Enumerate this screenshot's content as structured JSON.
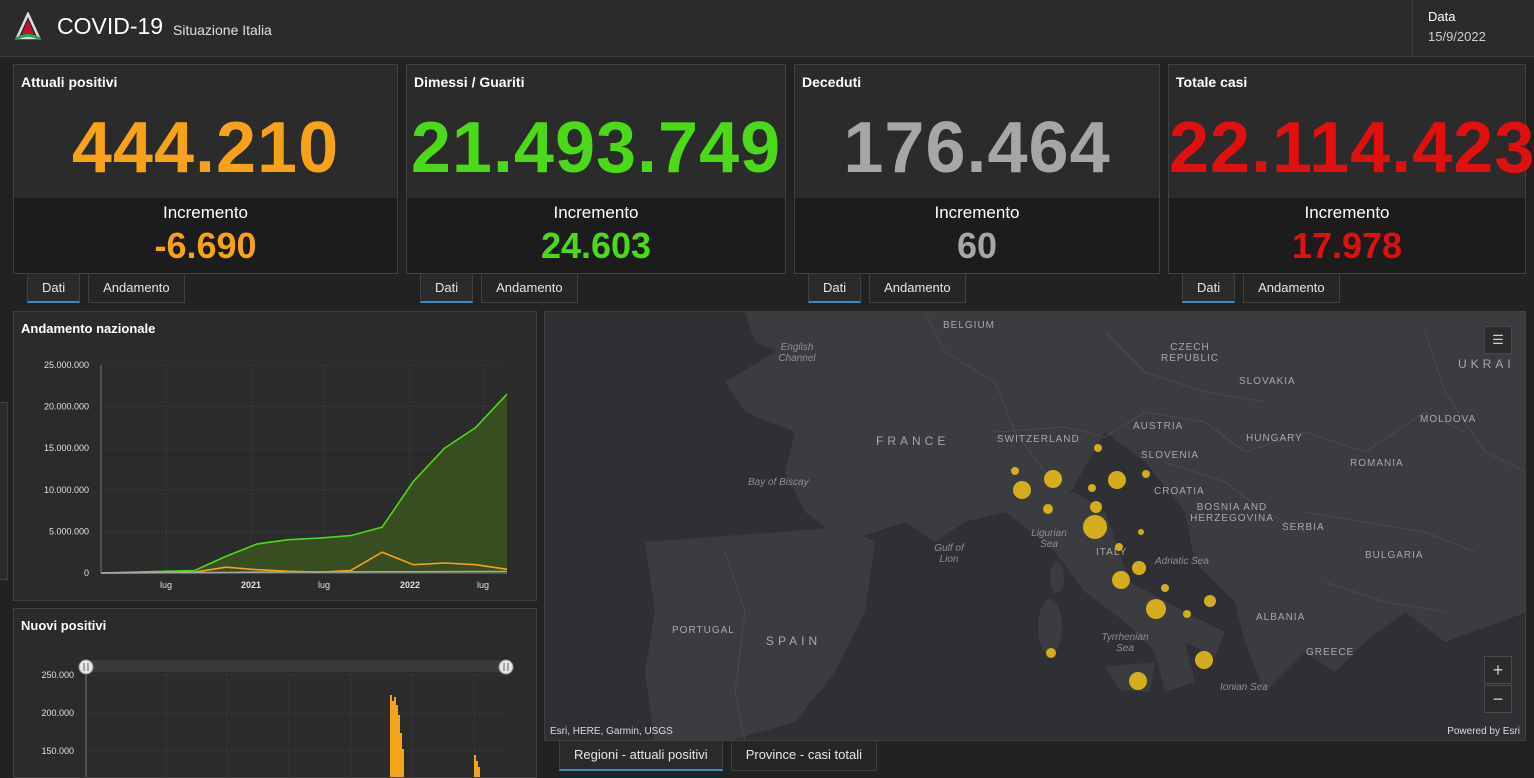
{
  "header": {
    "title": "COVID-19",
    "subtitle": "Situazione Italia",
    "date_label": "Data",
    "date_value": "15/9/2022"
  },
  "colors": {
    "positivi": "#f7a21b",
    "guariti": "#4cd91a",
    "deceduti": "#a6a6a6",
    "totale": "#e01010",
    "accent": "#3a8cc7",
    "bubble": "#e6b91e"
  },
  "cards": [
    {
      "title": "Attuali positivi",
      "value": "444.210",
      "increment_label": "Incremento",
      "increment": "-6.690",
      "tabs": [
        "Dati",
        "Andamento"
      ]
    },
    {
      "title": "Dimessi / Guariti",
      "value": "21.493.749",
      "increment_label": "Incremento",
      "increment": "24.603",
      "tabs": [
        "Dati",
        "Andamento"
      ]
    },
    {
      "title": "Deceduti",
      "value": "176.464",
      "increment_label": "Incremento",
      "increment": "60",
      "tabs": [
        "Dati",
        "Andamento"
      ]
    },
    {
      "title": "Totale casi",
      "value": "22.114.423",
      "increment_label": "Incremento",
      "increment": "17.978",
      "tabs": [
        "Dati",
        "Andamento"
      ]
    }
  ],
  "national_panel": {
    "title": "Andamento nazionale",
    "chart_data": {
      "type": "area",
      "y_ticks": [
        "25.000.000",
        "20.000.000",
        "15.000.000",
        "10.000.000",
        "5.000.000",
        "0"
      ],
      "x_ticks": [
        "lug",
        "2021",
        "lug",
        "2022",
        "lug"
      ],
      "ylim": [
        0,
        25000000
      ],
      "series": [
        {
          "values": [
            0,
            100000,
            200000,
            300000,
            2000000,
            3500000,
            4000000,
            4200000,
            4500000,
            5500000,
            11000000,
            15000000,
            17500000,
            21500000
          ]
        },
        {
          "values": [
            0,
            20000,
            60000,
            100000,
            700000,
            400000,
            200000,
            100000,
            300000,
            2500000,
            1000000,
            1200000,
            1000000,
            450000
          ]
        },
        {
          "values": [
            0,
            30000,
            35000,
            40000,
            60000,
            100000,
            125000,
            130000,
            135000,
            140000,
            150000,
            160000,
            170000,
            176000
          ]
        }
      ]
    }
  },
  "daily_panel": {
    "title": "Nuovi positivi",
    "chart_data": {
      "type": "bar",
      "y_ticks": [
        "250.000",
        "200.000",
        "150.000"
      ],
      "ylim": [
        100000,
        250000
      ]
    }
  },
  "map": {
    "labels": {
      "belgium": "BELGIUM",
      "english_channel": "English Channel",
      "czech": "CZECH REPUBLIC",
      "ukraine": "UKRAI",
      "slovakia": "SLOVAKIA",
      "moldova": "MOLDOVA",
      "france": "FRANCE",
      "switzerland": "SWITZERLAND",
      "austria": "AUSTRIA",
      "hungary": "HUNGARY",
      "slovenia": "SLOVENIA",
      "romania": "ROMANIA",
      "croatia": "CROATIA",
      "bay_biscay": "Bay of Biscay",
      "bosnia": "BOSNIA AND HERZEGOVINA",
      "serbia": "SERBIA",
      "gulf_lion": "Gulf of Lion",
      "ligurian": "Ligurian Sea",
      "italy": "ITALY",
      "adriatic": "Adriatic Sea",
      "bulgaria": "BULGARIA",
      "portugal": "PORTUGAL",
      "spain": "SPAIN",
      "albania": "ALBANIA",
      "tyrrhenian": "Tyrrhenian Sea",
      "greece": "GREECE",
      "ionian": "Ionian Sea"
    },
    "attribution": "Esri, HERE, Garmin, USGS",
    "powered": "Powered by Esri",
    "zoom_in": "+",
    "zoom_out": "−",
    "tabs": [
      "Regioni - attuali positivi",
      "Province - casi totali"
    ]
  }
}
